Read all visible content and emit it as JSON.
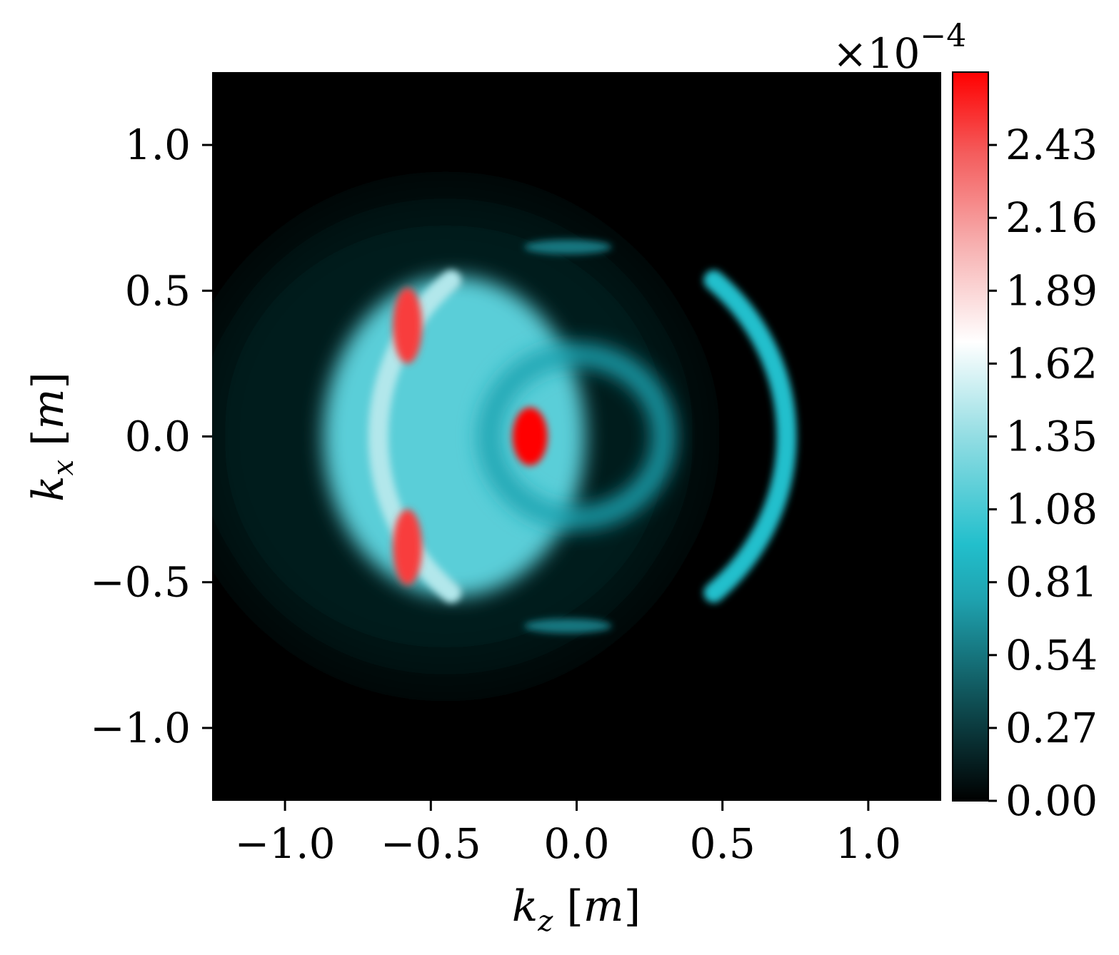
{
  "chart_data": {
    "type": "heatmap",
    "xlabel": {
      "symbol": "k",
      "sub": "z",
      "unit": "m"
    },
    "ylabel": {
      "symbol": "k",
      "sub": "x",
      "unit": "m"
    },
    "xlim": [
      -1.25,
      1.25
    ],
    "ylim": [
      -1.25,
      1.25
    ],
    "xticks": [
      -1.0,
      -0.5,
      0.0,
      0.5,
      1.0
    ],
    "yticks": [
      -1.0,
      -0.5,
      0.0,
      0.5,
      1.0
    ],
    "xtick_labels": [
      "−1.0",
      "−0.5",
      "0.0",
      "0.5",
      "1.0"
    ],
    "ytick_labels": [
      "−1.0",
      "−0.5",
      "0.0",
      "0.5",
      "1.0"
    ],
    "colorbar": {
      "multiplier_prefix": "×10",
      "multiplier_exponent": "−4",
      "ticks": [
        0.0,
        0.27,
        0.54,
        0.81,
        1.08,
        1.35,
        1.62,
        1.89,
        2.16,
        2.43
      ],
      "tick_labels": [
        "0.00",
        "0.27",
        "0.54",
        "0.81",
        "1.08",
        "1.35",
        "1.62",
        "1.89",
        "2.16",
        "2.43"
      ],
      "range": [
        0.0,
        2.7
      ],
      "colormap": [
        {
          "v": 0.0,
          "color": "#000000"
        },
        {
          "v": 0.35,
          "color": "#0e4b50"
        },
        {
          "v": 0.75,
          "color": "#1fa3b0"
        },
        {
          "v": 0.95,
          "color": "#22bfcc"
        },
        {
          "v": 1.35,
          "color": "#93dde3"
        },
        {
          "v": 1.7,
          "color": "#ffffff"
        },
        {
          "v": 2.05,
          "color": "#f7b2b2"
        },
        {
          "v": 2.4,
          "color": "#f45c5c"
        },
        {
          "v": 2.7,
          "color": "#ff0000"
        }
      ]
    },
    "features": [
      {
        "kind": "glow",
        "cx": -0.45,
        "cy": 0.0,
        "rx": 0.85,
        "ry": 0.82,
        "value": 0.12
      },
      {
        "kind": "glow",
        "cx": -0.42,
        "cy": 0.0,
        "rx": 0.45,
        "ry": 0.55,
        "value": 1.15
      },
      {
        "kind": "arc",
        "cx": 0.02,
        "cy": 0.0,
        "r": 0.7,
        "from_deg": 130,
        "to_deg": 230,
        "value": 1.45
      },
      {
        "kind": "arc",
        "cx": 0.02,
        "cy": 0.0,
        "r": 0.7,
        "from_deg": -50,
        "to_deg": 50,
        "value": 0.95
      },
      {
        "kind": "ring",
        "cx": 0.0,
        "cy": 0.0,
        "rx": 0.3,
        "ry": 0.28,
        "value": 0.75
      },
      {
        "kind": "hotspot",
        "cx": -0.16,
        "cy": 0.0,
        "rx": 0.06,
        "ry": 0.1,
        "value": 2.7
      },
      {
        "kind": "hotspot",
        "cx": -0.58,
        "cy": 0.38,
        "rx": 0.05,
        "ry": 0.13,
        "value": 2.5
      },
      {
        "kind": "hotspot",
        "cx": -0.58,
        "cy": -0.38,
        "rx": 0.05,
        "ry": 0.13,
        "value": 2.5
      },
      {
        "kind": "streak",
        "cx": -0.03,
        "cy": 0.65,
        "rx": 0.15,
        "ry": 0.025,
        "value": 0.55
      },
      {
        "kind": "streak",
        "cx": -0.03,
        "cy": -0.65,
        "rx": 0.15,
        "ry": 0.025,
        "value": 0.55
      }
    ]
  }
}
